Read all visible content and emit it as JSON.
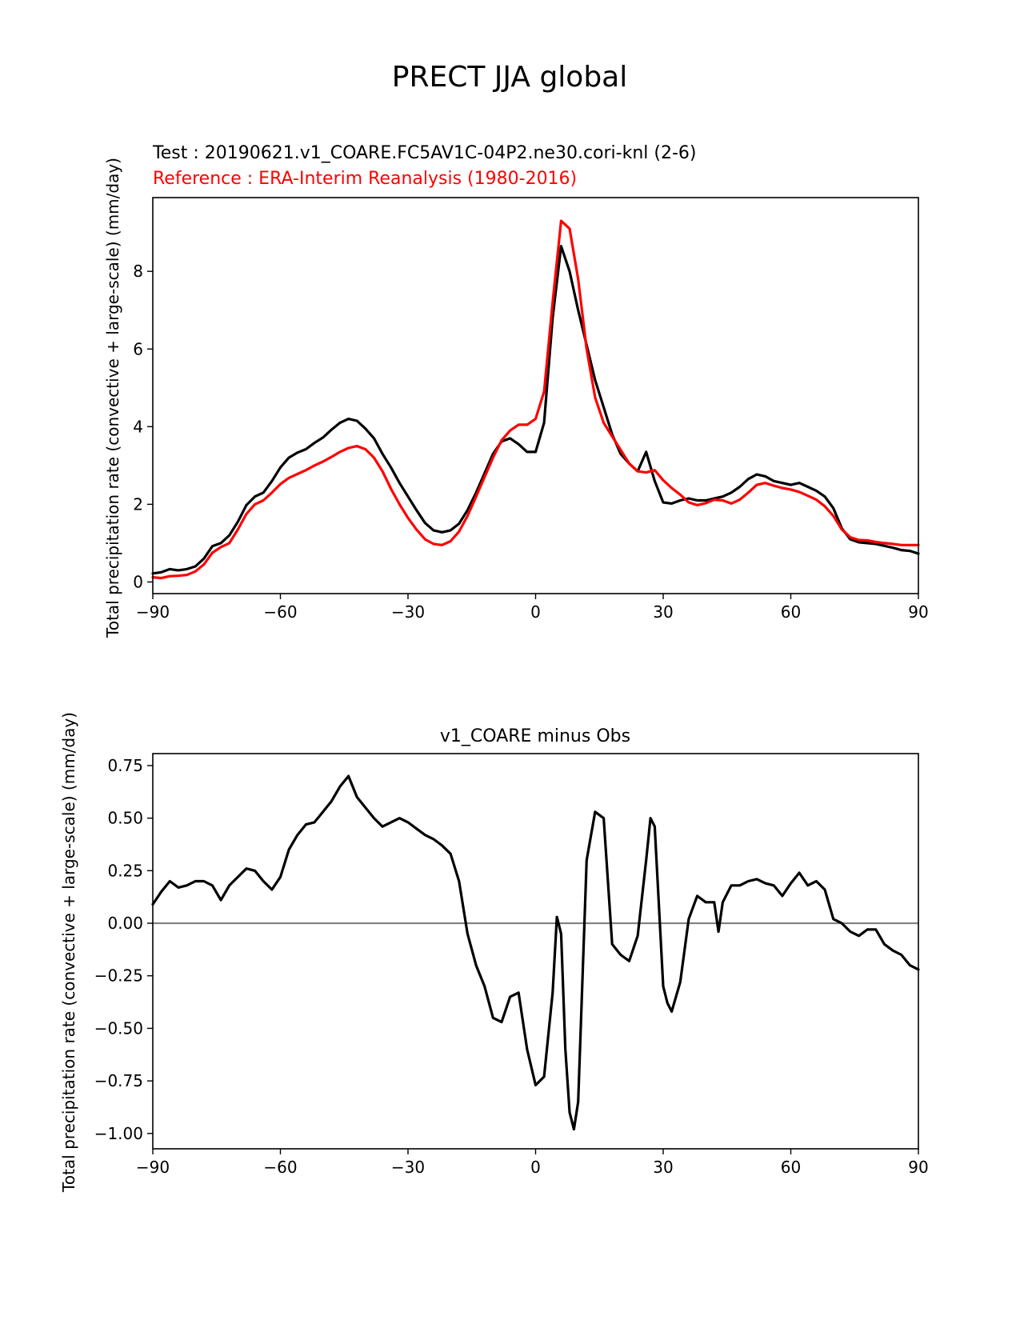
{
  "figure": {
    "title": "PRECT JJA global"
  },
  "colors": {
    "test": "#000000",
    "reference": "#ff0000",
    "zero_line": "#808080",
    "axes": "#000000"
  },
  "chart_data": [
    {
      "type": "line",
      "test_label": "Test : 20190621.v1_COARE.FC5AV1C-04P2.ne30.cori-knl (2-6)",
      "reference_label": "Reference : ERA-Interim Reanalysis (1980-2016)",
      "xlabel": "",
      "ylabel": "Total precipitation rate (convective + large-scale) (mm/day)",
      "xlim": [
        -90,
        90
      ],
      "ylim": [
        -0.3,
        9.9
      ],
      "xticks": [
        -90,
        -60,
        -30,
        0,
        30,
        60,
        90
      ],
      "xtick_labels": [
        "−90",
        "−60",
        "−30",
        "0",
        "30",
        "60",
        "90"
      ],
      "yticks": [
        0,
        2,
        4,
        6,
        8
      ],
      "ytick_labels": [
        "0",
        "2",
        "4",
        "6",
        "8"
      ],
      "series": [
        {
          "name": "Test",
          "color": "#000000",
          "x": [
            -90,
            -88,
            -86,
            -84,
            -82,
            -80,
            -78,
            -76,
            -74,
            -72,
            -70,
            -68,
            -66,
            -64,
            -62,
            -60,
            -58,
            -56,
            -54,
            -52,
            -50,
            -48,
            -46,
            -44,
            -42,
            -40,
            -38,
            -36,
            -34,
            -32,
            -30,
            -28,
            -26,
            -24,
            -22,
            -20,
            -18,
            -16,
            -14,
            -12,
            -10,
            -8,
            -6,
            -4,
            -2,
            0,
            2,
            4,
            6,
            8,
            10,
            12,
            14,
            16,
            18,
            20,
            22,
            24,
            26,
            28,
            30,
            32,
            34,
            36,
            38,
            40,
            42,
            44,
            46,
            48,
            50,
            52,
            54,
            56,
            58,
            60,
            62,
            64,
            66,
            68,
            70,
            72,
            74,
            76,
            78,
            80,
            82,
            84,
            86,
            88,
            90
          ],
          "y": [
            0.22,
            0.25,
            0.33,
            0.3,
            0.33,
            0.4,
            0.6,
            0.92,
            1.0,
            1.2,
            1.55,
            1.98,
            2.2,
            2.3,
            2.6,
            2.95,
            3.2,
            3.33,
            3.42,
            3.58,
            3.72,
            3.92,
            4.1,
            4.2,
            4.15,
            3.95,
            3.7,
            3.3,
            2.95,
            2.55,
            2.2,
            1.85,
            1.52,
            1.33,
            1.28,
            1.33,
            1.5,
            1.85,
            2.3,
            2.8,
            3.3,
            3.62,
            3.7,
            3.55,
            3.35,
            3.35,
            4.1,
            6.8,
            8.65,
            8.0,
            7.0,
            6.1,
            5.2,
            4.5,
            3.8,
            3.3,
            3.05,
            2.85,
            3.35,
            2.6,
            2.05,
            2.02,
            2.1,
            2.15,
            2.1,
            2.1,
            2.15,
            2.2,
            2.3,
            2.45,
            2.65,
            2.77,
            2.72,
            2.6,
            2.55,
            2.5,
            2.55,
            2.45,
            2.35,
            2.2,
            1.9,
            1.38,
            1.1,
            1.02,
            1.0,
            0.98,
            0.93,
            0.88,
            0.82,
            0.8,
            0.73
          ]
        },
        {
          "name": "Reference",
          "color": "#ff0000",
          "x": [
            -90,
            -88,
            -86,
            -84,
            -82,
            -80,
            -78,
            -76,
            -74,
            -72,
            -70,
            -68,
            -66,
            -64,
            -62,
            -60,
            -58,
            -56,
            -54,
            -52,
            -50,
            -48,
            -46,
            -44,
            -42,
            -40,
            -38,
            -36,
            -34,
            -32,
            -30,
            -28,
            -26,
            -24,
            -22,
            -20,
            -18,
            -16,
            -14,
            -12,
            -10,
            -8,
            -6,
            -4,
            -2,
            0,
            2,
            4,
            6,
            8,
            10,
            12,
            14,
            16,
            18,
            20,
            22,
            24,
            26,
            28,
            30,
            32,
            34,
            36,
            38,
            40,
            42,
            44,
            46,
            48,
            50,
            52,
            54,
            56,
            58,
            60,
            62,
            64,
            66,
            68,
            70,
            72,
            74,
            76,
            78,
            80,
            82,
            84,
            86,
            88,
            90
          ],
          "y": [
            0.12,
            0.1,
            0.15,
            0.16,
            0.18,
            0.27,
            0.45,
            0.75,
            0.9,
            1.0,
            1.35,
            1.75,
            2.0,
            2.1,
            2.3,
            2.52,
            2.68,
            2.78,
            2.88,
            3.0,
            3.1,
            3.22,
            3.35,
            3.45,
            3.5,
            3.42,
            3.2,
            2.85,
            2.4,
            2.0,
            1.65,
            1.35,
            1.1,
            0.98,
            0.95,
            1.05,
            1.3,
            1.7,
            2.2,
            2.7,
            3.2,
            3.65,
            3.9,
            4.05,
            4.05,
            4.2,
            4.9,
            7.2,
            9.3,
            9.1,
            7.8,
            6.0,
            4.75,
            4.1,
            3.75,
            3.4,
            3.05,
            2.85,
            2.82,
            2.88,
            2.62,
            2.42,
            2.25,
            2.05,
            1.98,
            2.03,
            2.12,
            2.1,
            2.02,
            2.12,
            2.3,
            2.5,
            2.55,
            2.48,
            2.42,
            2.38,
            2.32,
            2.22,
            2.12,
            1.95,
            1.7,
            1.35,
            1.15,
            1.08,
            1.07,
            1.03,
            1.0,
            0.98,
            0.95,
            0.95,
            0.95
          ]
        }
      ]
    },
    {
      "type": "line",
      "title": "v1_COARE minus Obs",
      "xlabel": "",
      "ylabel": "Total precipitation rate (convective + large-scale) (mm/day)",
      "xlim": [
        -90,
        90
      ],
      "ylim": [
        -1.073,
        0.807
      ],
      "xticks": [
        -90,
        -60,
        -30,
        0,
        30,
        60,
        90
      ],
      "xtick_labels": [
        "−90",
        "−60",
        "−30",
        "0",
        "30",
        "60",
        "90"
      ],
      "yticks": [
        0.75,
        0.5,
        0.25,
        0.0,
        -0.25,
        -0.5,
        -0.75,
        -1.0
      ],
      "ytick_labels": [
        "0.75",
        "0.50",
        "0.25",
        "0.00",
        "−0.25",
        "−0.50",
        "−0.75",
        "−1.00"
      ],
      "zero_line": 0,
      "series": [
        {
          "name": "v1_COARE minus Obs",
          "color": "#000000",
          "x": [
            -90,
            -88,
            -86,
            -84,
            -82,
            -80,
            -78,
            -76,
            -74,
            -72,
            -70,
            -68,
            -66,
            -64,
            -62,
            -60,
            -58,
            -56,
            -54,
            -52,
            -50,
            -48,
            -46,
            -44,
            -42,
            -40,
            -38,
            -36,
            -34,
            -32,
            -30,
            -28,
            -26,
            -24,
            -22,
            -20,
            -18,
            -16,
            -14,
            -12,
            -10,
            -8,
            -6,
            -4,
            -2,
            0,
            2,
            4,
            5,
            6,
            7,
            8,
            9,
            10,
            12,
            14,
            16,
            18,
            20,
            22,
            24,
            26,
            27,
            28,
            30,
            31,
            32,
            34,
            36,
            38,
            40,
            42,
            43,
            44,
            46,
            48,
            50,
            52,
            54,
            56,
            58,
            60,
            62,
            64,
            66,
            68,
            70,
            72,
            74,
            76,
            78,
            80,
            82,
            84,
            86,
            88,
            90
          ],
          "y": [
            0.09,
            0.15,
            0.2,
            0.17,
            0.18,
            0.2,
            0.2,
            0.18,
            0.11,
            0.18,
            0.22,
            0.26,
            0.25,
            0.2,
            0.16,
            0.22,
            0.35,
            0.42,
            0.47,
            0.48,
            0.53,
            0.58,
            0.65,
            0.7,
            0.6,
            0.55,
            0.5,
            0.46,
            0.48,
            0.5,
            0.48,
            0.45,
            0.42,
            0.4,
            0.37,
            0.33,
            0.2,
            -0.05,
            -0.2,
            -0.3,
            -0.45,
            -0.47,
            -0.35,
            -0.33,
            -0.6,
            -0.77,
            -0.73,
            -0.33,
            0.03,
            -0.05,
            -0.6,
            -0.9,
            -0.98,
            -0.85,
            0.3,
            0.53,
            0.5,
            -0.1,
            -0.15,
            -0.18,
            -0.06,
            0.3,
            0.5,
            0.46,
            -0.3,
            -0.38,
            -0.42,
            -0.28,
            0.02,
            0.13,
            0.1,
            0.1,
            -0.04,
            0.1,
            0.18,
            0.18,
            0.2,
            0.21,
            0.19,
            0.18,
            0.13,
            0.19,
            0.24,
            0.18,
            0.2,
            0.16,
            0.02,
            0.0,
            -0.04,
            -0.06,
            -0.03,
            -0.03,
            -0.1,
            -0.13,
            -0.15,
            -0.2,
            -0.22
          ]
        }
      ]
    }
  ]
}
